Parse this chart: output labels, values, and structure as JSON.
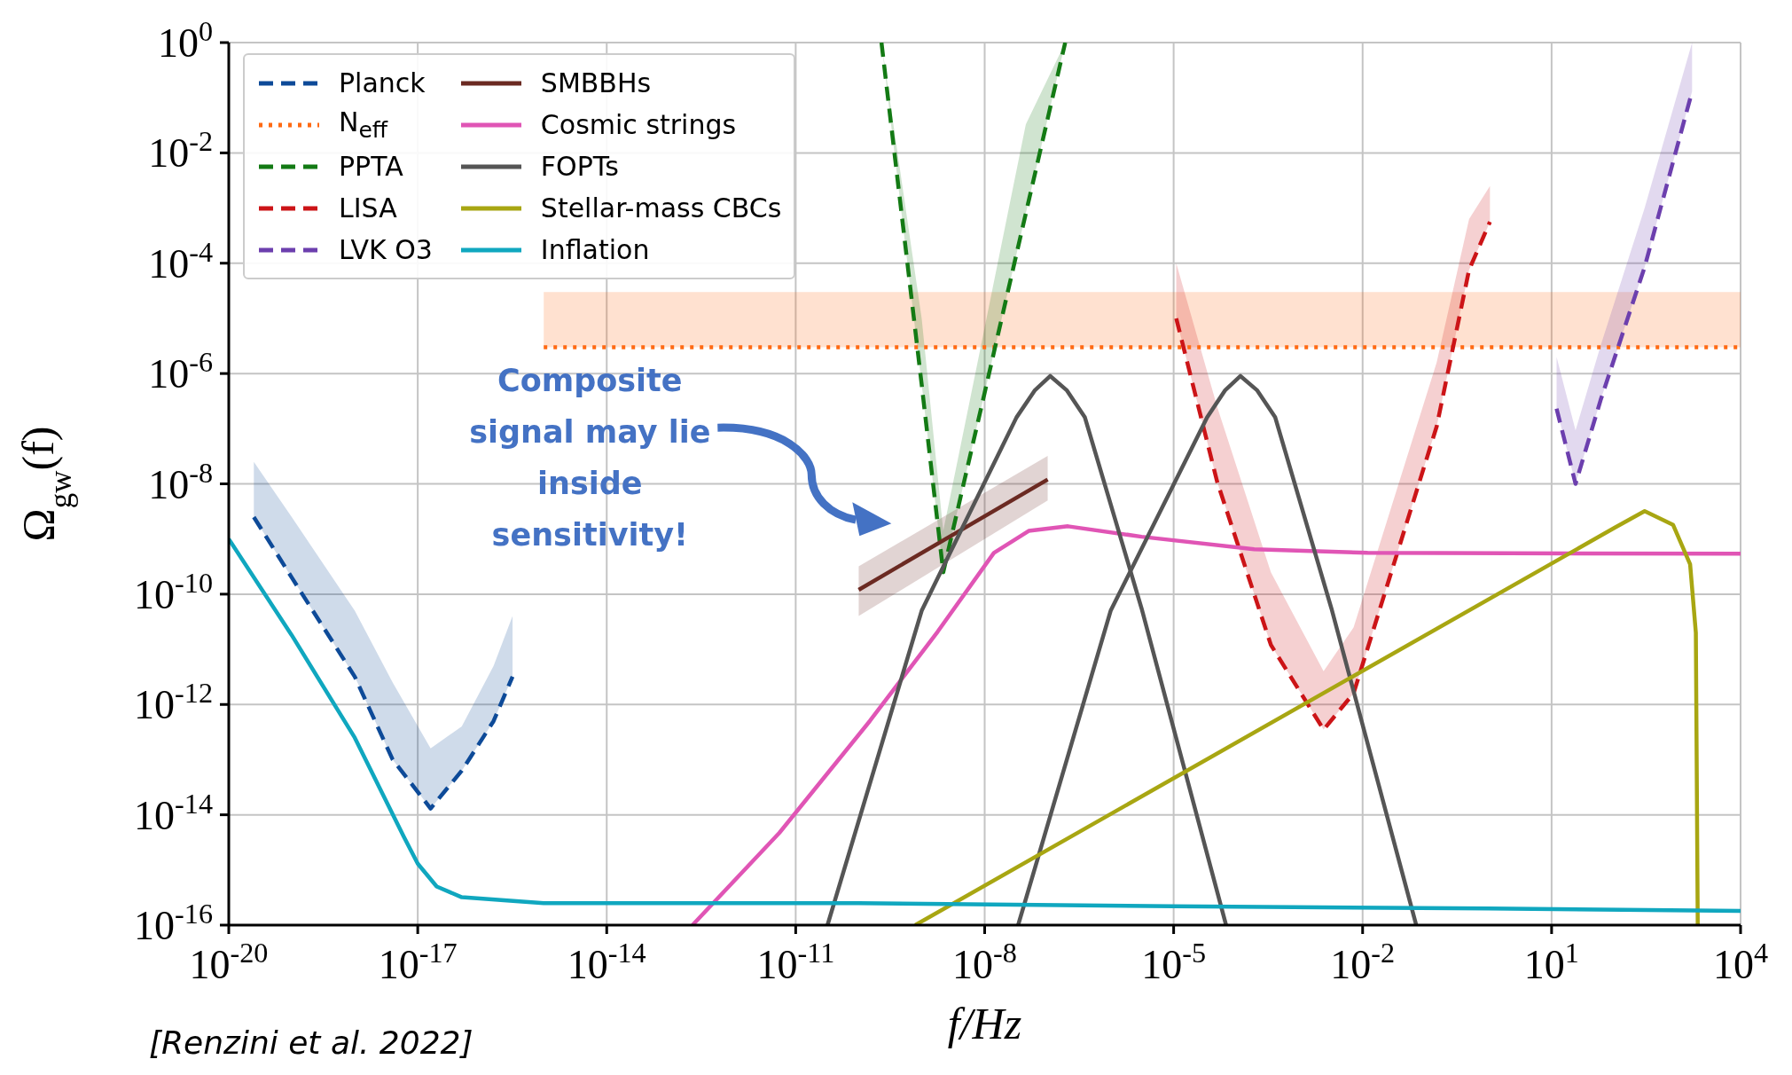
{
  "chart_data": {
    "type": "line",
    "xlabel": "f/Hz",
    "ylabel": "Ω$_{gw}$(f)",
    "log": "xy",
    "grid": true,
    "legend": "top left",
    "xlim": [
      1e-20,
      10000
    ],
    "ylim": [
      1e-16,
      1
    ],
    "xticks": [
      {
        "value": 1e-20,
        "label": "10$^{-20}$"
      },
      {
        "value": 1e-17,
        "label": "10$^{-17}$"
      },
      {
        "value": 1e-14,
        "label": "10$^{-14}$"
      },
      {
        "value": 1e-11,
        "label": "10$^{-11}$"
      },
      {
        "value": 1e-08,
        "label": "10$^{-8}$"
      },
      {
        "value": 1e-05,
        "label": "10$^{-5}$"
      },
      {
        "value": 0.01,
        "label": "10$^{-2}$"
      },
      {
        "value": 10,
        "label": "10$^{1}$"
      },
      {
        "value": 10000,
        "label": "10$^{4}$"
      }
    ],
    "yticks": [
      {
        "value": 1e-16,
        "label": "10$^{-16}$"
      },
      {
        "value": 1e-14,
        "label": "10$^{-14}$"
      },
      {
        "value": 1e-12,
        "label": "10$^{-12}$"
      },
      {
        "value": 1e-10,
        "label": "10$^{-10}$"
      },
      {
        "value": 1e-08,
        "label": "10$^{-8}$"
      },
      {
        "value": 1e-06,
        "label": "10$^{-6}$"
      },
      {
        "value": 0.0001,
        "label": "10$^{-4}$"
      },
      {
        "value": 0.01,
        "label": "10$^{-2}$"
      },
      {
        "value": 1,
        "label": "10$^{0}$"
      }
    ],
    "series": [
      {
        "name": "Planck",
        "color": "#0d4a98",
        "line_style": "dashed",
        "x": [
          2.5e-20,
          1e-19,
          1e-18,
          4e-18,
          1.6e-17,
          5e-17,
          1.6e-16,
          3.2e-16
        ],
        "values": [
          2.5e-09,
          2e-10,
          3.2e-12,
          1e-13,
          1.3e-14,
          6.3e-14,
          5e-13,
          3.2e-12
        ],
        "lower": [
          2.5e-09,
          2e-10,
          3.2e-12,
          1e-13,
          1.3e-14,
          6.3e-14,
          5e-13,
          3.2e-12
        ],
        "upper": [
          2.5e-08,
          2.5e-09,
          5e-11,
          2.5e-12,
          1.6e-13,
          4e-13,
          5e-12,
          4e-11
        ]
      },
      {
        "name": "N$_{eff}$",
        "color": "#ff6a13",
        "line_style": "dotted",
        "x": [
          1e-15,
          10000
        ],
        "values": [
          3e-06,
          3e-06
        ],
        "lower": [
          3e-06,
          3e-06
        ],
        "upper": [
          3e-05,
          3e-05
        ]
      },
      {
        "name": "PPTA",
        "color": "#137a14",
        "line_style": "dashed",
        "x": [
          2.3e-10,
          1e-09,
          2.2e-09,
          1e-08,
          4.5e-08,
          1.9e-07
        ],
        "values": [
          1,
          6.3e-07,
          2.5e-10,
          4.5e-07,
          0.0008,
          1
        ],
        "lower": [
          1,
          6.3e-07,
          2.5e-10,
          4.5e-07,
          0.0008,
          1
        ],
        "upper": [
          1,
          1e-05,
          1.4e-09,
          6.8e-06,
          0.033,
          1
        ]
      },
      {
        "name": "LISA",
        "color": "#cc1417",
        "line_style": "dashed",
        "x": [
          1.1e-05,
          4.9e-05,
          0.00035,
          0.0024,
          0.0072,
          0.15,
          0.49,
          1.05
        ],
        "values": [
          1e-05,
          1.1e-08,
          1.2e-11,
          3.5e-13,
          1.6e-12,
          1.1e-07,
          7.6e-05,
          0.00056
        ],
        "lower": [
          1e-05,
          1.1e-08,
          1.2e-11,
          3.5e-13,
          1.6e-12,
          1.1e-07,
          7.6e-05,
          0.00056
        ],
        "upper": [
          0.0001,
          2.5e-07,
          2.5e-10,
          4e-12,
          2.5e-11,
          1.6e-06,
          0.00063,
          0.0025
        ]
      },
      {
        "name": "LVK O3",
        "color": "#6c3fae",
        "line_style": "dashed",
        "x": [
          12,
          24,
          60,
          300,
          1700
        ],
        "values": [
          2.3e-07,
          1e-08,
          3.3e-07,
          8.5e-05,
          0.13
        ],
        "lower": [
          2.3e-07,
          1e-08,
          3.3e-07,
          8.5e-05,
          0.13
        ],
        "upper": [
          2e-06,
          9.3e-08,
          3.2e-06,
          0.001,
          1
        ]
      },
      {
        "name": "SMBBHs",
        "color": "#6b2a22",
        "line_style": "solid",
        "x": [
          1e-10,
          1e-07
        ],
        "values": [
          1.2e-10,
          1.2e-08
        ],
        "lower": [
          4e-11,
          5e-09
        ],
        "upper": [
          3.2e-10,
          3.2e-08
        ]
      },
      {
        "name": "Cosmic strings",
        "color": "#e055b5",
        "line_style": "solid",
        "x": [
          2.3e-13,
          5.5e-12,
          1.5e-10,
          1.8e-09,
          1.4e-08,
          5e-08,
          2.1e-07,
          3.1e-06,
          0.00019,
          0.012,
          10000
        ],
        "values": [
          1e-16,
          4.7e-15,
          5e-13,
          2.1e-11,
          5.6e-10,
          1.4e-09,
          1.7e-09,
          1.1e-09,
          6.5e-10,
          5.6e-10,
          5.4e-10
        ]
      },
      {
        "name": "FOPTs",
        "color": "#555555",
        "line_style": "solid",
        "x": [
          3.2e-11,
          1e-09,
          3.2e-08,
          6.3e-08,
          1.1e-07,
          2e-07,
          3.9e-07,
          3.1e-06,
          6.8e-05
        ],
        "values": [
          1e-16,
          5e-11,
          1.6e-07,
          5e-07,
          9e-07,
          5e-07,
          1.6e-07,
          5.5e-11,
          1e-16
        ]
      },
      {
        "color": "#555555",
        "line_style": "solid",
        "x": [
          3.4e-08,
          1e-06,
          3.4e-05,
          6.6e-05,
          0.000115,
          0.00021,
          0.00041,
          0.0032,
          0.071
        ],
        "values": [
          1e-16,
          5e-11,
          1.6e-07,
          5e-07,
          9e-07,
          5e-07,
          1.6e-07,
          5.5e-11,
          1e-16
        ]
      },
      {
        "name": "Stellar-mass CBCs",
        "color": "#a8a612",
        "line_style": "solid",
        "x": [
          7.9e-10,
          100,
          300,
          850,
          1580,
          1950,
          2090
        ],
        "values": [
          1e-16,
          1.6e-09,
          3.2e-09,
          1.8e-09,
          3.5e-10,
          2e-11,
          1e-16
        ]
      },
      {
        "name": "Inflation",
        "color": "#10a7bf",
        "line_style": "solid",
        "x": [
          1e-20,
          1e-19,
          1e-18,
          6e-18,
          1e-17,
          2e-17,
          5e-17,
          1e-15,
          1e-10,
          1e-05,
          1,
          10000
        ],
        "values": [
          1e-09,
          1.8e-11,
          2.5e-13,
          4e-15,
          1.3e-15,
          5e-16,
          3.2e-16,
          2.5e-16,
          2.5e-16,
          2.2e-16,
          2e-16,
          1.8e-16
        ]
      }
    ],
    "annotations": [
      "Composite signal may lie inside sensitivity!",
      "[Renzini et al. 2022]"
    ]
  }
}
